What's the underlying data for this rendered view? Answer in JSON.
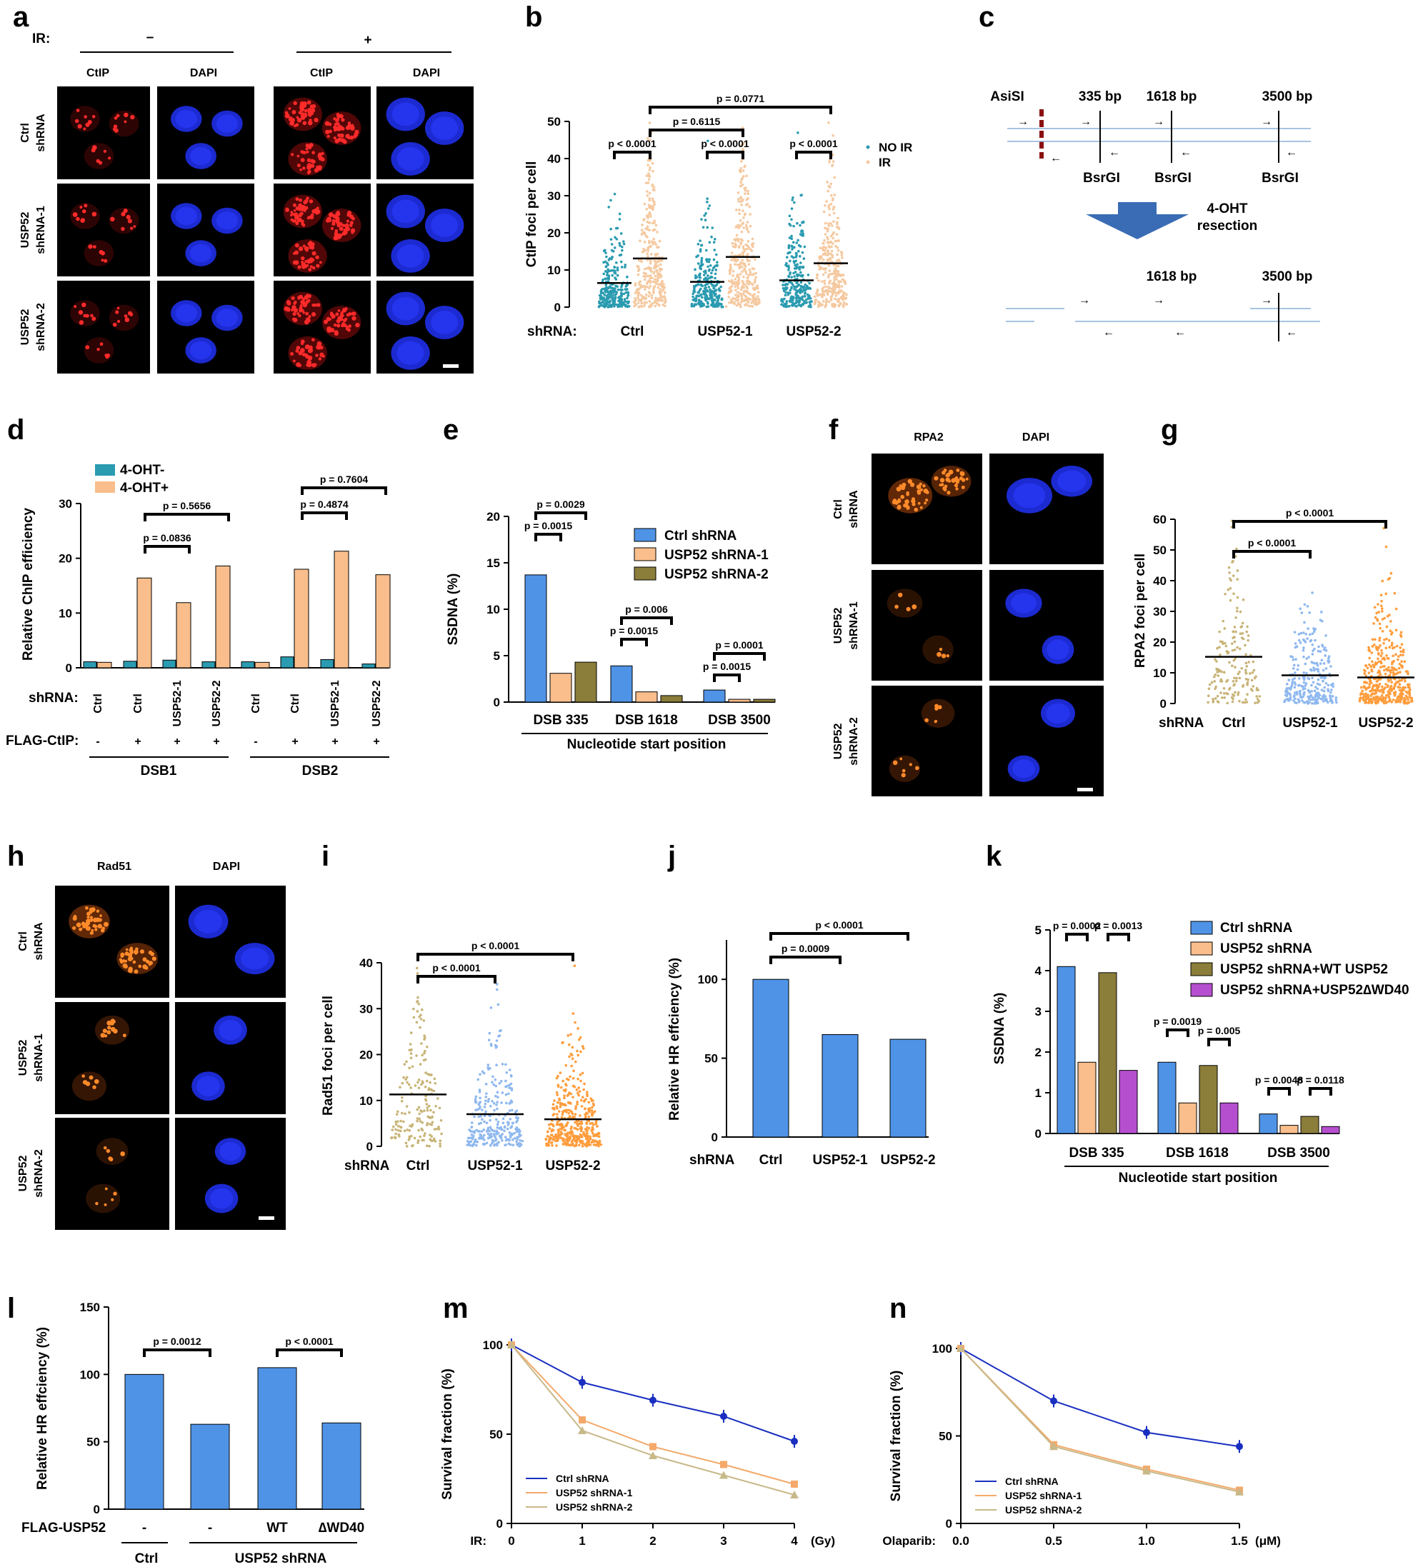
{
  "panels": [
    "a",
    "b",
    "c",
    "d",
    "e",
    "f",
    "g",
    "h",
    "i",
    "j",
    "k",
    "l",
    "m",
    "n"
  ],
  "a": {
    "ir_label": "IR:",
    "ir_minus": "–",
    "ir_plus": "+",
    "stain_1": "CtIP",
    "stain_2": "DAPI",
    "rows": [
      "Ctrl shRNA",
      "USP52 shRNA-1",
      "USP52 shRNA-2"
    ]
  },
  "b": {
    "ylabel": "CtIP foci per cell",
    "shrna_label": "shRNA:",
    "legend": [
      "NO IR",
      "IR"
    ],
    "pvalues": [
      "p < 0.0001",
      "p < 0.0001",
      "p < 0.0001",
      "p = 0.6115",
      "p = 0.0771"
    ]
  },
  "c": {
    "asisi": "AsiSI",
    "bp": [
      "335 bp",
      "1618 bp",
      "3500 bp"
    ],
    "bsrgi": "BsrGI",
    "arrow_label": [
      "4-OHT",
      "resection"
    ],
    "bp2": [
      "1618 bp",
      "3500 bp"
    ]
  },
  "d": {
    "ylabel": "Relative ChIP efficiency",
    "legend": [
      "4-OHT-",
      "4-OHT+"
    ],
    "shrna_label": "shRNA:",
    "flag_label": "FLAG-CtIP:",
    "flag_values": [
      "-",
      "+",
      "+",
      "+",
      "-",
      "+",
      "+",
      "+"
    ],
    "groups": [
      "DSB1",
      "DSB2"
    ],
    "pvalues": [
      "p = 0.5656",
      "p = 0.0836",
      "p = 0.7604",
      "p = 0.4874"
    ]
  },
  "e": {
    "ylabel": "SSDNA (%)",
    "xlabel": "Nucleotide start position",
    "legend": [
      "Ctrl shRNA",
      "USP52 shRNA-1",
      "USP52 shRNA-2"
    ],
    "pvalues": [
      "p = 0.0029",
      "p = 0.0015",
      "p = 0.006",
      "p = 0.0015",
      "p = 0.0001",
      "p = 0.0015"
    ]
  },
  "f": {
    "stain_1": "RPA2",
    "stain_2": "DAPI",
    "rows": [
      "Ctrl shRNA",
      "USP52 shRNA-1",
      "USP52 shRNA-2"
    ]
  },
  "g": {
    "ylabel": "RPA2 foci per cell",
    "shrna_label": "shRNA",
    "pvalues": [
      "p < 0.0001",
      "p < 0.0001"
    ]
  },
  "h": {
    "stain_1": "Rad51",
    "stain_2": "DAPI",
    "rows": [
      "Ctrl shRNA",
      "USP52 shRNA-1",
      "USP52 shRNA-2"
    ]
  },
  "i": {
    "ylabel": "Rad51 foci per cell",
    "shrna_label": "shRNA",
    "pvalues": [
      "p < 0.0001",
      "p < 0.0001"
    ]
  },
  "j": {
    "ylabel": "Relative HR effciency (%)",
    "shrna_label": "shRNA",
    "pvalues": [
      "p < 0.0001",
      "p = 0.0009"
    ]
  },
  "k": {
    "ylabel": "SSDNA (%)",
    "xlabel": "Nucleotide start position",
    "legend": [
      "Ctrl shRNA",
      "USP52 shRNA",
      "USP52 shRNA+WT USP52",
      "USP52 shRNA+USP52∆WD40"
    ],
    "pvalues": [
      "p = 0.0002",
      "p = 0.0013",
      "p = 0.0019",
      "p = 0.005",
      "p = 0.0048",
      "p = 0.0118"
    ]
  },
  "l": {
    "ylabel": "Relative HR effciency (%)",
    "flag_label": "FLAG-USP52",
    "groups": [
      "Ctrl",
      "USP52 shRNA"
    ],
    "pvalues": [
      "p = 0.0012",
      "p < 0.0001"
    ]
  },
  "m": {
    "ylabel": "Survival fraction (%)",
    "xprefix": "IR:",
    "xunit": "(Gy)"
  },
  "n": {
    "ylabel": "Survival fraction (%)",
    "xprefix": "Olaparib:",
    "xunit": "(μM)"
  },
  "colors": {
    "blue": "#4f93e6",
    "orange": "#f9be8c",
    "olive": "#8b7d3a",
    "purple": "#b64fcf",
    "teal": "#2a9bb0",
    "tan": "#f5c9a0",
    "darkblue": "#1a2fc0",
    "lineorange": "#f4a96a",
    "linetan": "#c8b98a"
  },
  "chart_data": [
    {
      "type": "scatter",
      "id": "b",
      "categories": [
        "Ctrl",
        "USP52-1",
        "USP52-2"
      ],
      "series": [
        {
          "name": "NO IR",
          "means": [
            6.5,
            6.8,
            7.2
          ]
        },
        {
          "name": "IR",
          "means": [
            13.1,
            13.5,
            11.8
          ]
        }
      ],
      "ylim": [
        0,
        50
      ],
      "yticks": [
        0,
        10,
        20,
        30,
        40,
        50
      ]
    },
    {
      "type": "bar",
      "id": "d",
      "categories": [
        "Ctrl",
        "Ctrl",
        "USP52-1",
        "USP52-2",
        "Ctrl",
        "Ctrl",
        "USP52-1",
        "USP52-2"
      ],
      "series": [
        {
          "name": "4-OHT-",
          "values": [
            1.1,
            1.2,
            1.4,
            1.1,
            1.1,
            2.0,
            1.5,
            0.7
          ]
        },
        {
          "name": "4-OHT+",
          "values": [
            1.0,
            16.4,
            11.9,
            18.6,
            1.0,
            18.0,
            21.3,
            17.0
          ]
        }
      ],
      "ylim": [
        0,
        30
      ],
      "yticks": [
        0,
        10,
        20,
        30
      ]
    },
    {
      "type": "bar",
      "id": "e",
      "categories": [
        "DSB 335",
        "DSB 1618",
        "DSB 3500"
      ],
      "series": [
        {
          "name": "Ctrl shRNA",
          "values": [
            13.7,
            3.9,
            1.3
          ]
        },
        {
          "name": "USP52 shRNA-1",
          "values": [
            3.1,
            1.1,
            0.3
          ]
        },
        {
          "name": "USP52 shRNA-2",
          "values": [
            4.3,
            0.7,
            0.3
          ]
        }
      ],
      "ylim": [
        0,
        20
      ],
      "yticks": [
        0,
        5,
        10,
        15,
        20
      ]
    },
    {
      "type": "scatter",
      "id": "g",
      "categories": [
        "Ctrl",
        "USP52-1",
        "USP52-2"
      ],
      "means": [
        15.2,
        9.2,
        8.5
      ],
      "ylim": [
        0,
        60
      ],
      "yticks": [
        0,
        10,
        20,
        30,
        40,
        50,
        60
      ]
    },
    {
      "type": "scatter",
      "id": "i",
      "categories": [
        "Ctrl",
        "USP52-1",
        "USP52-2"
      ],
      "means": [
        11.3,
        7.0,
        5.9
      ],
      "ylim": [
        0,
        40
      ],
      "yticks": [
        0,
        10,
        20,
        30,
        40
      ]
    },
    {
      "type": "bar",
      "id": "j",
      "categories": [
        "Ctrl",
        "USP52-1",
        "USP52-2"
      ],
      "values": [
        100,
        65,
        62
      ],
      "ylim": [
        0,
        125
      ],
      "yticks": [
        0,
        50,
        100
      ]
    },
    {
      "type": "bar",
      "id": "k",
      "categories": [
        "DSB 335",
        "DSB 1618",
        "DSB 3500"
      ],
      "series": [
        {
          "name": "Ctrl shRNA",
          "values": [
            4.1,
            1.75,
            0.48
          ]
        },
        {
          "name": "USP52 shRNA",
          "values": [
            1.75,
            0.75,
            0.2
          ]
        },
        {
          "name": "USP52 shRNA+WT USP52",
          "values": [
            3.95,
            1.67,
            0.42
          ]
        },
        {
          "name": "USP52 shRNA+USP52∆WD40",
          "values": [
            1.55,
            0.75,
            0.17
          ]
        }
      ],
      "ylim": [
        0,
        5
      ],
      "yticks": [
        0,
        1,
        2,
        3,
        4,
        5
      ]
    },
    {
      "type": "bar",
      "id": "l",
      "categories": [
        "-",
        "-",
        "WT",
        "∆WD40"
      ],
      "values": [
        100,
        63,
        105,
        64
      ],
      "ylim": [
        0,
        150
      ],
      "yticks": [
        0,
        50,
        100,
        150
      ]
    },
    {
      "type": "line",
      "id": "m",
      "x": [
        0,
        1,
        2,
        3,
        4
      ],
      "series": [
        {
          "name": "Ctrl shRNA",
          "values": [
            100,
            79,
            69,
            60,
            46
          ]
        },
        {
          "name": "USP52 shRNA-1",
          "values": [
            100,
            58,
            43,
            33,
            22
          ]
        },
        {
          "name": "USP52 shRNA-2",
          "values": [
            100,
            52,
            38,
            27,
            16
          ]
        }
      ],
      "ylim": [
        0,
        100
      ],
      "yticks": [
        0,
        50,
        100
      ]
    },
    {
      "type": "line",
      "id": "n",
      "x": [
        0.0,
        0.5,
        1.0,
        1.5
      ],
      "series": [
        {
          "name": "Ctrl shRNA",
          "values": [
            100,
            70,
            52,
            44
          ]
        },
        {
          "name": "USP52 shRNA-1",
          "values": [
            100,
            45,
            31,
            19
          ]
        },
        {
          "name": "USP52 shRNA-2",
          "values": [
            100,
            44,
            30,
            18
          ]
        }
      ],
      "ylim": [
        0,
        100
      ],
      "yticks": [
        0,
        50,
        100
      ]
    }
  ]
}
